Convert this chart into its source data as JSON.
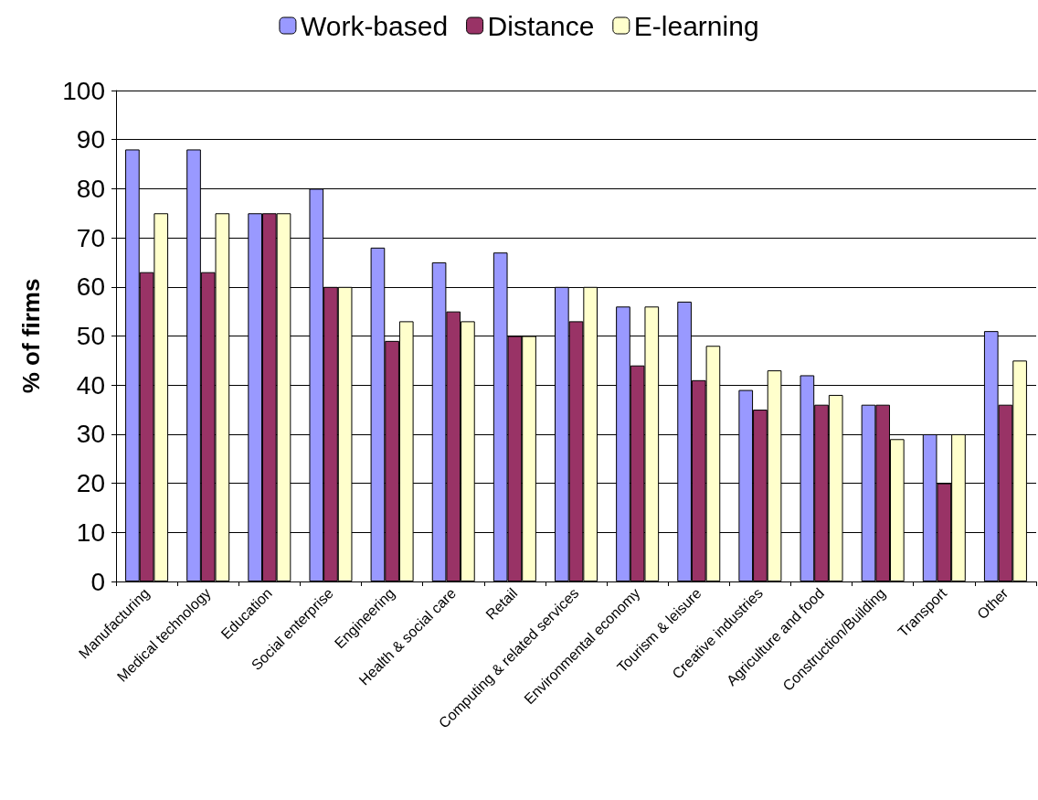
{
  "chart_data": {
    "type": "bar",
    "ylabel": "% of firms",
    "categories": [
      "Manufacturing",
      "Medical technology",
      "Education",
      "Social enterprise",
      "Engineering",
      "Health & social care",
      "Retail",
      "Computing & related services",
      "Environmental economy",
      "Tourism & leisure",
      "Creative industries",
      "Agriculture and food",
      "Construction/Building",
      "Transport",
      "Other"
    ],
    "series": [
      {
        "name": "Work-based",
        "color": "#9999ff",
        "values": [
          88,
          88,
          75,
          80,
          68,
          65,
          67,
          60,
          56,
          57,
          39,
          42,
          36,
          30,
          51
        ]
      },
      {
        "name": "Distance",
        "color": "#993366",
        "values": [
          63,
          63,
          75,
          60,
          49,
          55,
          50,
          53,
          44,
          41,
          35,
          36,
          36,
          20,
          36
        ]
      },
      {
        "name": "E-learning",
        "color": "#ffffcc",
        "values": [
          75,
          75,
          75,
          60,
          53,
          53,
          50,
          60,
          56,
          48,
          43,
          38,
          29,
          30,
          45
        ]
      }
    ],
    "ylim": [
      0,
      100
    ],
    "yticks": [
      0,
      10,
      20,
      30,
      40,
      50,
      60,
      70,
      80,
      90,
      100
    ],
    "grid": "y",
    "legend": "top"
  }
}
